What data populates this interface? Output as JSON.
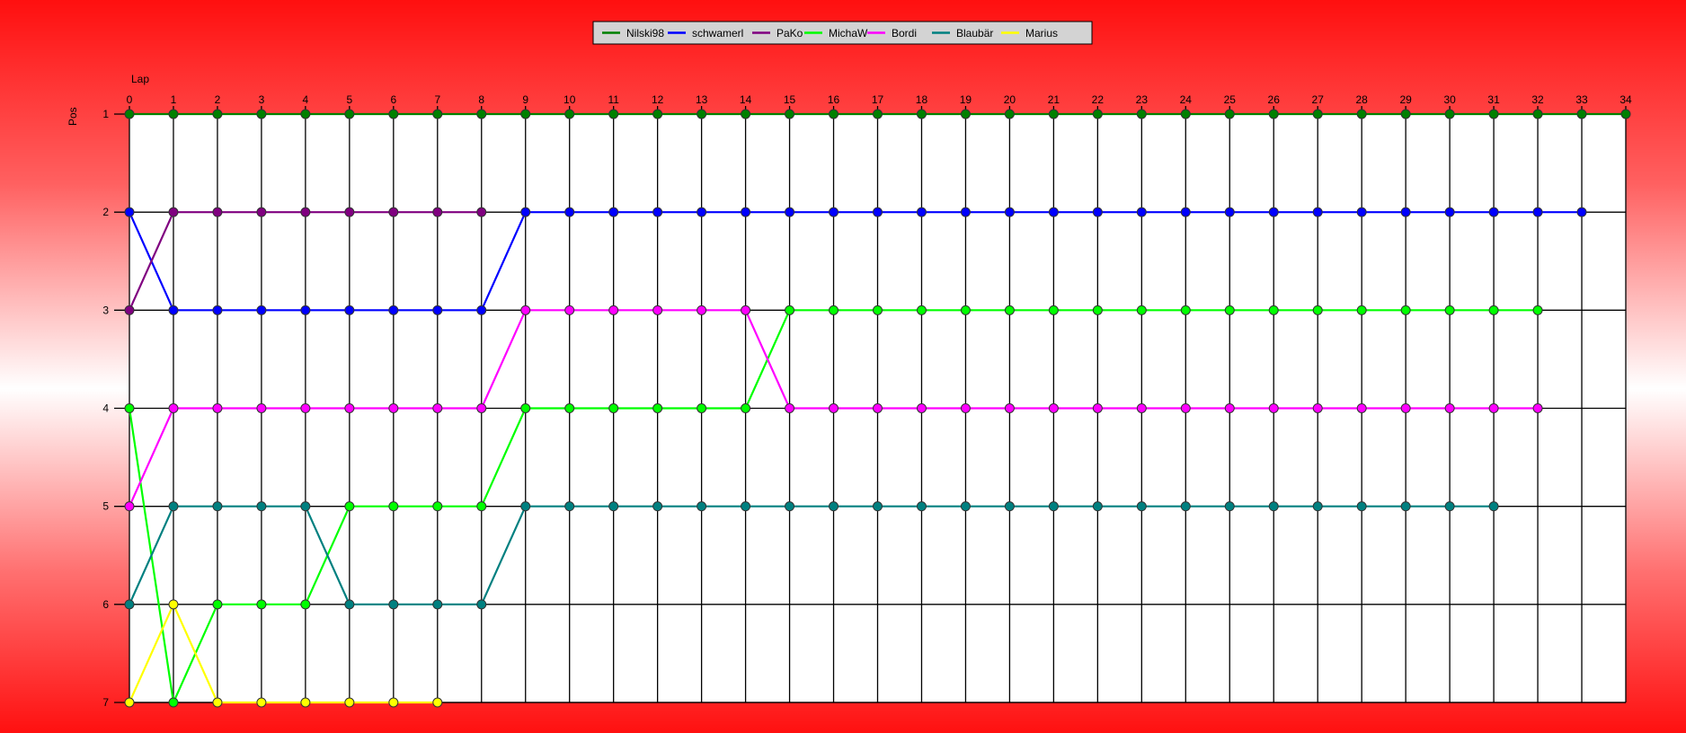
{
  "chart_data": {
    "type": "line",
    "xlabel": "Lap",
    "ylabel": "Pos",
    "x_ticks": [
      0,
      1,
      2,
      3,
      4,
      5,
      6,
      7,
      8,
      9,
      10,
      11,
      12,
      13,
      14,
      15,
      16,
      17,
      18,
      19,
      20,
      21,
      22,
      23,
      24,
      25,
      26,
      27,
      28,
      29,
      30,
      31,
      32,
      33,
      34
    ],
    "y_ticks": [
      1,
      2,
      3,
      4,
      5,
      6,
      7
    ],
    "xlim": [
      0,
      34
    ],
    "ylim": [
      1,
      7
    ],
    "y_inverted": true,
    "grid": true,
    "legend_position": "top-center",
    "series": [
      {
        "name": "Nilski98",
        "color": "#008000",
        "start_lap": 0,
        "values": [
          1,
          1,
          1,
          1,
          1,
          1,
          1,
          1,
          1,
          1,
          1,
          1,
          1,
          1,
          1,
          1,
          1,
          1,
          1,
          1,
          1,
          1,
          1,
          1,
          1,
          1,
          1,
          1,
          1,
          1,
          1,
          1,
          1,
          1,
          1
        ]
      },
      {
        "name": "schwamerl",
        "color": "#0000ff",
        "start_lap": 0,
        "values": [
          2,
          3,
          3,
          3,
          3,
          3,
          3,
          3,
          3,
          2,
          2,
          2,
          2,
          2,
          2,
          2,
          2,
          2,
          2,
          2,
          2,
          2,
          2,
          2,
          2,
          2,
          2,
          2,
          2,
          2,
          2,
          2,
          2,
          2
        ]
      },
      {
        "name": "PaKo",
        "color": "#800080",
        "start_lap": 0,
        "values": [
          3,
          2,
          2,
          2,
          2,
          2,
          2,
          2,
          2
        ]
      },
      {
        "name": "MichaW",
        "color": "#00ff00",
        "start_lap": 0,
        "values": [
          4,
          7,
          6,
          6,
          6,
          5,
          5,
          5,
          5,
          4,
          4,
          4,
          4,
          4,
          4,
          3,
          3,
          3,
          3,
          3,
          3,
          3,
          3,
          3,
          3,
          3,
          3,
          3,
          3,
          3,
          3,
          3,
          3
        ]
      },
      {
        "name": "Bordi",
        "color": "#ff00ff",
        "start_lap": 0,
        "values": [
          5,
          4,
          4,
          4,
          4,
          4,
          4,
          4,
          4,
          3,
          3,
          3,
          3,
          3,
          3,
          4,
          4,
          4,
          4,
          4,
          4,
          4,
          4,
          4,
          4,
          4,
          4,
          4,
          4,
          4,
          4,
          4,
          4
        ]
      },
      {
        "name": "Blaubär",
        "color": "#008080",
        "start_lap": 0,
        "values": [
          6,
          5,
          5,
          5,
          5,
          6,
          6,
          6,
          6,
          5,
          5,
          5,
          5,
          5,
          5,
          5,
          5,
          5,
          5,
          5,
          5,
          5,
          5,
          5,
          5,
          5,
          5,
          5,
          5,
          5,
          5,
          5
        ]
      },
      {
        "name": "Marius",
        "color": "#ffff00",
        "start_lap": 0,
        "values": [
          7,
          6,
          7,
          7,
          7,
          7,
          7,
          7
        ]
      }
    ]
  }
}
